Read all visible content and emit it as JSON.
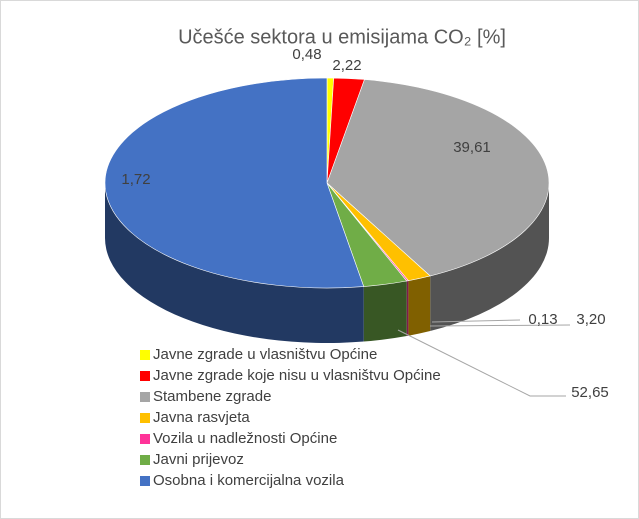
{
  "chart_data": {
    "type": "pie",
    "title": "Učešće sektora u emisijama CO₂ [%]",
    "categories": [
      "Javne zgrade u vlasništvu Općine",
      "Javne zgrade koje nisu u vlasništvu Općine",
      "Stambene zgrade",
      "Javna rasvjeta",
      "Vozila u nadležnosti Općine",
      "Javni prijevoz",
      "Osobna i komercijalna vozila"
    ],
    "values": [
      0.48,
      2.22,
      39.61,
      1.72,
      0.13,
      3.2,
      52.65
    ],
    "value_labels": [
      "0,48",
      "2,22",
      "39,61",
      "1,72",
      "0,13",
      "3,20",
      "52,65"
    ],
    "colors": [
      "#ffff00",
      "#ff0000",
      "#a5a5a5",
      "#ffc000",
      "#ff3399",
      "#70ad47",
      "#4472c4"
    ]
  }
}
